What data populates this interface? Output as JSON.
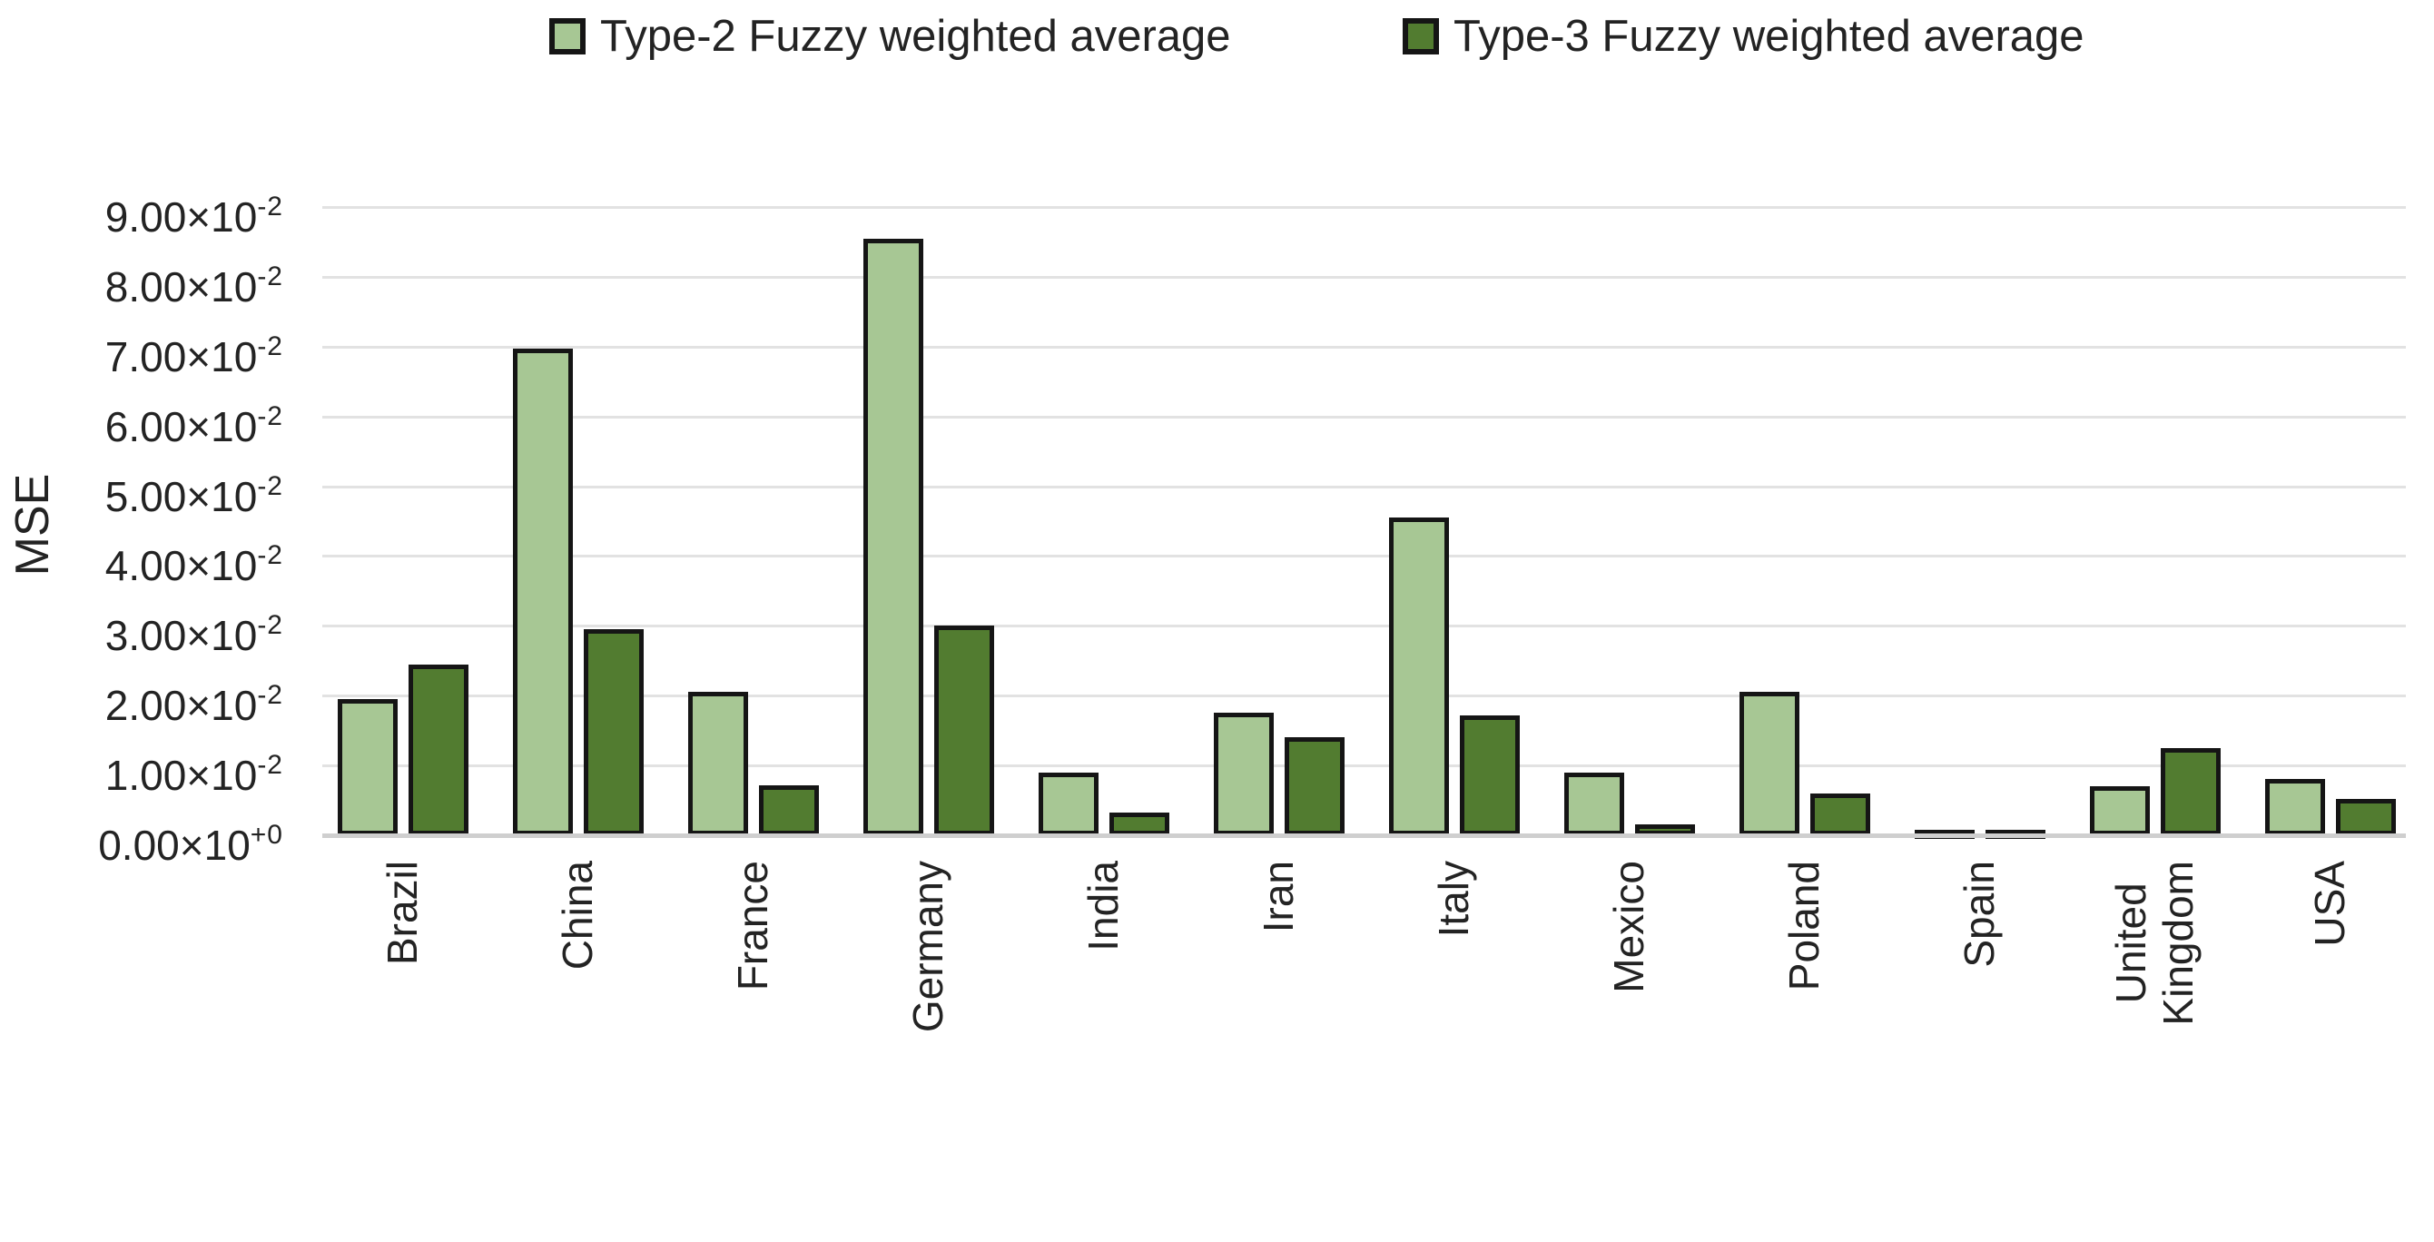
{
  "legend": {
    "series": [
      {
        "label": "Type-2 Fuzzy weighted average",
        "color": "#A7C794"
      },
      {
        "label": "Type-3 Fuzzy weighted average",
        "color": "#527C30"
      }
    ]
  },
  "chart_data": {
    "type": "bar",
    "title": "",
    "xlabel": "",
    "ylabel": "MSE",
    "ylim": [
      0,
      0.09
    ],
    "grid": true,
    "legend_position": "top",
    "bar_outline_color": "#151515",
    "categories": [
      "Brazil",
      "China",
      "France",
      "Germany",
      "India",
      "Iran",
      "Italy",
      "Mexico",
      "Poland",
      "Spain",
      "United\nKingdom",
      "USA"
    ],
    "series": [
      {
        "name": "Type-2 Fuzzy weighted average",
        "color": "#A7C794",
        "values": [
          0.0195,
          0.0697,
          0.0205,
          0.0855,
          0.009,
          0.0175,
          0.0455,
          0.009,
          0.0205,
          0.0008,
          0.007,
          0.008
        ]
      },
      {
        "name": "Type-3 Fuzzy weighted average",
        "color": "#527C30",
        "values": [
          0.0245,
          0.0295,
          0.0072,
          0.0301,
          0.0032,
          0.014,
          0.0172,
          0.0015,
          0.006,
          0.0008,
          0.0125,
          0.0052
        ]
      }
    ],
    "y_ticks": [
      {
        "mantissa": "0.00×10",
        "exp": "+0"
      },
      {
        "mantissa": "1.00×10",
        "exp": "-2"
      },
      {
        "mantissa": "2.00×10",
        "exp": "-2"
      },
      {
        "mantissa": "3.00×10",
        "exp": "-2"
      },
      {
        "mantissa": "4.00×10",
        "exp": "-2"
      },
      {
        "mantissa": "5.00×10",
        "exp": "-2"
      },
      {
        "mantissa": "6.00×10",
        "exp": "-2"
      },
      {
        "mantissa": "7.00×10",
        "exp": "-2"
      },
      {
        "mantissa": "8.00×10",
        "exp": "-2"
      },
      {
        "mantissa": "9.00×10",
        "exp": "-2"
      }
    ]
  }
}
